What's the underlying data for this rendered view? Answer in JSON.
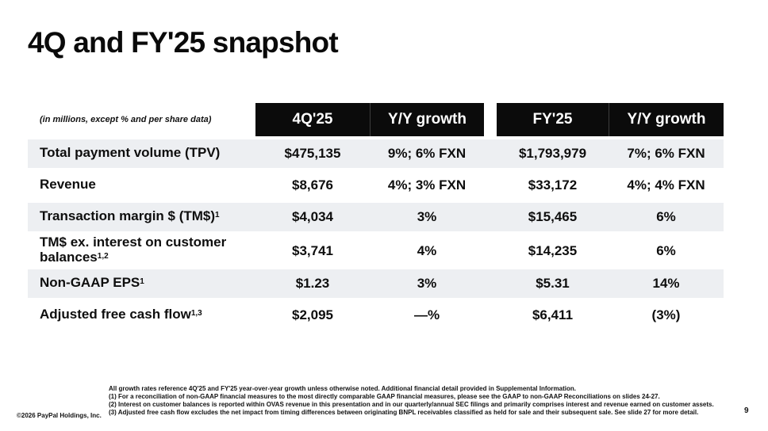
{
  "slide": {
    "title": "4Q and FY'25 snapshot",
    "units_note": "(in millions, except % and per share data)",
    "copyright": "©2026 PayPal Holdings, Inc.",
    "page_number": "9"
  },
  "table": {
    "header": {
      "q_period": "4Q'25",
      "q_growth": "Y/Y growth",
      "fy_period": "FY'25",
      "fy_growth": "Y/Y growth"
    },
    "rows": [
      {
        "label": "Total payment volume (TPV)",
        "sup": "",
        "q_value": "$475,135",
        "q_growth": "9%; 6% FXN",
        "fy_value": "$1,793,979",
        "fy_growth": "7%; 6% FXN"
      },
      {
        "label": "Revenue",
        "sup": "",
        "q_value": "$8,676",
        "q_growth": "4%; 3% FXN",
        "fy_value": "$33,172",
        "fy_growth": "4%; 4% FXN"
      },
      {
        "label": "Transaction margin $ (TM$)",
        "sup": "1",
        "q_value": "$4,034",
        "q_growth": "3%",
        "fy_value": "$15,465",
        "fy_growth": "6%"
      },
      {
        "label": "TM$ ex. interest on customer balances",
        "sup": "1,2",
        "q_value": "$3,741",
        "q_growth": "4%",
        "fy_value": "$14,235",
        "fy_growth": "6%"
      },
      {
        "label": "Non-GAAP EPS",
        "sup": "1",
        "q_value": "$1.23",
        "q_growth": "3%",
        "fy_value": "$5.31",
        "fy_growth": "14%"
      },
      {
        "label": "Adjusted free cash flow",
        "sup": "1,3",
        "q_value": "$2,095",
        "q_growth": "—%",
        "fy_value": "$6,411",
        "fy_growth": "(3%)"
      }
    ],
    "colors": {
      "header_bg": "#0b0b0b",
      "row_shade_bg": "#edeff2",
      "text": "#0e0e0e"
    }
  },
  "footnotes": {
    "line0": "All growth rates reference 4Q'25 and FY'25 year-over-year growth unless otherwise noted. Additional financial detail provided in Supplemental Information.",
    "line1": "(1) For a reconciliation of non-GAAP financial measures to the most directly comparable GAAP financial measures, please see the GAAP to non-GAAP Reconciliations on slides 24-27.",
    "line2": "(2) Interest on customer balances is reported within OVAS revenue in this presentation and in our quarterly/annual SEC filings and primarily comprises interest and revenue earned on customer assets.",
    "line3": "(3) Adjusted free cash flow excludes the net impact from timing differences between originating BNPL receivables classified as held for sale and their subsequent sale. See slide 27 for more detail."
  }
}
